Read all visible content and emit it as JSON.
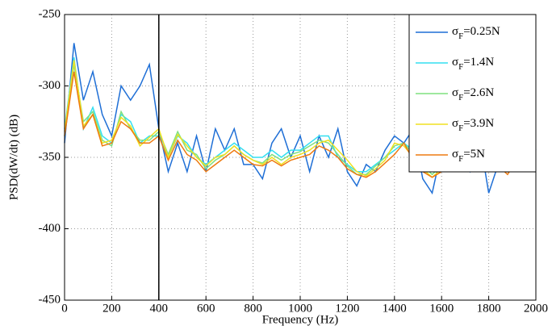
{
  "chart_data": {
    "type": "line",
    "xlabel": "Frequency (Hz)",
    "ylabel": "PSD(dW/dt) (dB)",
    "x": [
      0,
      40,
      80,
      120,
      160,
      200,
      240,
      280,
      320,
      360,
      400,
      440,
      480,
      520,
      560,
      600,
      640,
      680,
      720,
      760,
      800,
      840,
      880,
      920,
      960,
      1000,
      1040,
      1080,
      1120,
      1160,
      1200,
      1240,
      1280,
      1320,
      1360,
      1400,
      1440,
      1480,
      1520,
      1560,
      1600,
      1640,
      1680,
      1720,
      1760,
      1800,
      1840,
      1880,
      1920,
      1960,
      2000
    ],
    "series": [
      {
        "name": "σF=0.25N",
        "color": "#1f6fd6",
        "values": [
          -340,
          -270,
          -310,
          -290,
          -320,
          -335,
          -300,
          -310,
          -300,
          -285,
          -330,
          -360,
          -340,
          -360,
          -335,
          -360,
          -330,
          -345,
          -330,
          -355,
          -355,
          -365,
          -340,
          -330,
          -350,
          -335,
          -360,
          -335,
          -350,
          -330,
          -360,
          -370,
          -355,
          -360,
          -345,
          -335,
          -340,
          -330,
          -365,
          -375,
          -345,
          -330,
          -350,
          -360,
          -335,
          -375,
          -355,
          -360,
          -335,
          -330,
          -345
        ]
      },
      {
        "name": "σF=1.4N",
        "color": "#33dff0",
        "values": [
          -330,
          -280,
          -330,
          -315,
          -335,
          -340,
          -320,
          -325,
          -340,
          -335,
          -335,
          -350,
          -335,
          -340,
          -350,
          -355,
          -350,
          -345,
          -340,
          -345,
          -350,
          -350,
          -345,
          -350,
          -345,
          -345,
          -340,
          -335,
          -335,
          -350,
          -355,
          -360,
          -360,
          -355,
          -350,
          -345,
          -340,
          -345,
          -355,
          -360,
          -355,
          -350,
          -350,
          -355,
          -350,
          -355,
          -350,
          -355,
          -345,
          -340,
          -345
        ]
      },
      {
        "name": "σF=2.6N",
        "color": "#7fe07f",
        "values": [
          -335,
          -285,
          -325,
          -318,
          -338,
          -342,
          -318,
          -330,
          -338,
          -338,
          -332,
          -348,
          -332,
          -345,
          -348,
          -358,
          -352,
          -348,
          -342,
          -348,
          -352,
          -354,
          -348,
          -352,
          -348,
          -346,
          -342,
          -338,
          -340,
          -348,
          -356,
          -362,
          -362,
          -356,
          -350,
          -342,
          -340,
          -348,
          -356,
          -362,
          -356,
          -352,
          -352,
          -356,
          -352,
          -358,
          -352,
          -358,
          -348,
          -342,
          -348
        ]
      },
      {
        "name": "σF=3.9N",
        "color": "#f0e020",
        "values": [
          -332,
          -282,
          -328,
          -320,
          -340,
          -338,
          -322,
          -328,
          -342,
          -336,
          -330,
          -350,
          -334,
          -342,
          -350,
          -356,
          -350,
          -348,
          -342,
          -348,
          -352,
          -355,
          -350,
          -355,
          -350,
          -348,
          -345,
          -340,
          -338,
          -345,
          -352,
          -360,
          -363,
          -358,
          -352,
          -340,
          -342,
          -350,
          -358,
          -364,
          -358,
          -354,
          -354,
          -358,
          -354,
          -360,
          -355,
          -360,
          -350,
          -345,
          -350
        ]
      },
      {
        "name": "σF=5N",
        "color": "#ee7a10",
        "values": [
          -335,
          -290,
          -330,
          -320,
          -342,
          -340,
          -325,
          -330,
          -340,
          -340,
          -335,
          -352,
          -338,
          -348,
          -352,
          -360,
          -355,
          -350,
          -345,
          -350,
          -355,
          -356,
          -352,
          -356,
          -352,
          -350,
          -348,
          -342,
          -345,
          -350,
          -358,
          -362,
          -364,
          -360,
          -354,
          -348,
          -340,
          -352,
          -360,
          -364,
          -360,
          -356,
          -356,
          -360,
          -356,
          -360,
          -356,
          -362,
          -352,
          -348,
          -352
        ]
      }
    ],
    "xlim": [
      0,
      2000
    ],
    "xticks": [
      0,
      200,
      400,
      600,
      800,
      1000,
      1200,
      1400,
      1600,
      1800,
      2000
    ],
    "ylim": [
      -450,
      -250
    ],
    "yticks": [
      -450,
      -400,
      -350,
      -300,
      -250
    ],
    "vlines": [
      400
    ],
    "grid": true,
    "legend": "upper right"
  }
}
